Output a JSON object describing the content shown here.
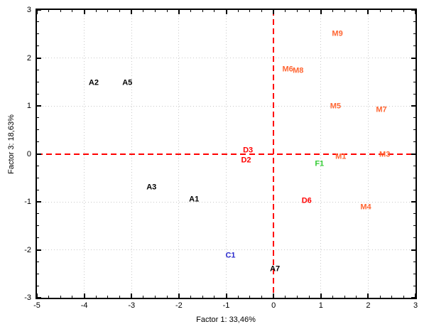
{
  "chart_data": {
    "type": "scatter",
    "title": "",
    "xlabel": "Factor 1: 33,46%",
    "ylabel": "Factor 3: 18,63%",
    "xlim": [
      -5,
      3
    ],
    "ylim": [
      -3,
      3
    ],
    "x_major_ticks": [
      -5,
      -4,
      -3,
      -2,
      -1,
      0,
      1,
      2,
      3
    ],
    "y_major_ticks": [
      -3,
      -2,
      -1,
      0,
      1,
      2,
      3
    ],
    "minor_tick_step": 0.25,
    "grid": "dotted",
    "grid_color": "#c8c8c8",
    "zero_line_color": "#ff0000",
    "frame_color": "#000000",
    "background_color": "#ffffff",
    "legend_position": "none",
    "series": [
      {
        "name": "A",
        "color": "#000000",
        "points": [
          {
            "label": "A2",
            "x": -3.8,
            "y": 1.48
          },
          {
            "label": "A5",
            "x": -3.09,
            "y": 1.48
          },
          {
            "label": "A3",
            "x": -2.58,
            "y": -0.7
          },
          {
            "label": "A1",
            "x": -1.68,
            "y": -0.96
          },
          {
            "label": "A7",
            "x": 0.03,
            "y": -2.4
          }
        ]
      },
      {
        "name": "M",
        "color": "#ff6633",
        "points": [
          {
            "label": "M9",
            "x": 1.35,
            "y": 2.49
          },
          {
            "label": "M6",
            "x": 0.3,
            "y": 1.75
          },
          {
            "label": "M8",
            "x": 0.52,
            "y": 1.73
          },
          {
            "label": "M5",
            "x": 1.31,
            "y": 0.98
          },
          {
            "label": "M7",
            "x": 2.28,
            "y": 0.91
          },
          {
            "label": "M1",
            "x": 1.42,
            "y": -0.06
          },
          {
            "label": "M3",
            "x": 2.35,
            "y": -0.02
          },
          {
            "label": "M4",
            "x": 1.95,
            "y": -1.12
          }
        ]
      },
      {
        "name": "D",
        "color": "#ff0000",
        "points": [
          {
            "label": "D3",
            "x": -0.54,
            "y": 0.07
          },
          {
            "label": "D2",
            "x": -0.58,
            "y": -0.14
          },
          {
            "label": "D6",
            "x": 0.7,
            "y": -0.99
          }
        ]
      },
      {
        "name": "F",
        "color": "#33cc33",
        "points": [
          {
            "label": "F1",
            "x": 0.97,
            "y": -0.21
          }
        ]
      },
      {
        "name": "C",
        "color": "#2a2acc",
        "points": [
          {
            "label": "C1",
            "x": -0.91,
            "y": -2.13
          }
        ]
      }
    ]
  }
}
